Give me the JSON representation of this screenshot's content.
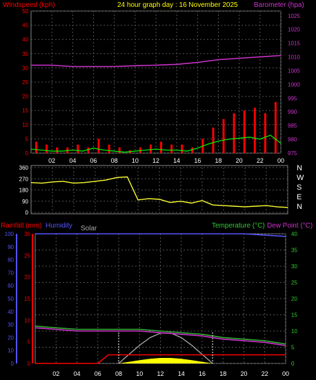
{
  "header": {
    "title": "24 hour graph day : 16 November 2025",
    "windspeed_label": "Windspeed (kph)",
    "barometer_label": "Barometer (hpa)"
  },
  "colors": {
    "background": "#000000",
    "grid": "#555555",
    "wind": "#ff0000",
    "wind_avg": "#00ff00",
    "barometer": "#cc33cc",
    "direction": "#ffff33",
    "rain": "#ff0000",
    "humidity": "#5555ff",
    "solar": "#aaaaaa",
    "temperature": "#33aa33",
    "dewpoint": "#cc33cc",
    "solar_fill": "#ffff00",
    "axis_white": "#ffffff",
    "title": "#ffff00"
  },
  "chart_data": [
    {
      "type": "line",
      "name": "wind-barometer",
      "x_ticks": [
        "02",
        "04",
        "06",
        "08",
        "10",
        "12",
        "14",
        "16",
        "18",
        "20",
        "22",
        "00"
      ],
      "y_left_ticks": [
        0,
        5,
        10,
        15,
        20,
        25,
        30,
        35,
        40,
        45,
        50
      ],
      "y_left_lim": [
        0,
        50
      ],
      "y_right_ticks": [
        975,
        980,
        985,
        990,
        995,
        1000,
        1005,
        1010,
        1015,
        1020,
        1025
      ],
      "y_right_lim": [
        975,
        1026.7
      ],
      "series": [
        {
          "name": "Windspeed (kph)",
          "color": "#ff0000",
          "axis": "left",
          "x": [
            0,
            1,
            2,
            3,
            4,
            5,
            6,
            7,
            8,
            9,
            10,
            11,
            12,
            13,
            14,
            15,
            16,
            17,
            18,
            19,
            20,
            21,
            22,
            23,
            24
          ],
          "values": [
            4,
            3,
            2,
            2,
            3,
            2,
            5,
            3,
            2,
            1,
            2,
            3,
            4,
            3,
            3,
            2,
            5,
            9,
            12,
            14,
            15,
            16,
            14,
            18,
            10
          ]
        },
        {
          "name": "Barometer (hpa)",
          "color": "#cc33cc",
          "axis": "right",
          "x": [
            0,
            2,
            4,
            6,
            8,
            10,
            12,
            14,
            16,
            18,
            20,
            22,
            24
          ],
          "values": [
            1007,
            1007,
            1006.5,
            1006.5,
            1006.5,
            1006.8,
            1007,
            1007.3,
            1008,
            1009,
            1009.5,
            1010,
            1010.5
          ]
        }
      ]
    },
    {
      "type": "scatter",
      "name": "wind-direction",
      "x_ticks": [
        "02",
        "04",
        "06",
        "08",
        "10",
        "12",
        "14",
        "16",
        "18",
        "20",
        "22",
        "00"
      ],
      "y_ticks": [
        0,
        45,
        90,
        135,
        180,
        225,
        270,
        315,
        360
      ],
      "y_lim": [
        0,
        360
      ],
      "compass_labels": [
        "N",
        "W",
        "S",
        "E",
        "N"
      ],
      "x": [
        0,
        1,
        2,
        3,
        4,
        5,
        6,
        7,
        8,
        9,
        10,
        11,
        12,
        13,
        14,
        15,
        16,
        17,
        18,
        19,
        20,
        21,
        22,
        23,
        24
      ],
      "values": [
        240,
        235,
        245,
        250,
        235,
        240,
        250,
        260,
        280,
        285,
        100,
        110,
        105,
        80,
        90,
        75,
        95,
        60,
        55,
        50,
        45,
        50,
        55,
        45,
        40
      ]
    },
    {
      "type": "line",
      "name": "rain-humidity-temperature",
      "x_ticks": [
        "02",
        "04",
        "06",
        "08",
        "10",
        "12",
        "14",
        "16",
        "18",
        "20",
        "22",
        "00"
      ],
      "y_humidity_ticks": [
        0,
        10,
        20,
        30,
        40,
        50,
        60,
        70,
        80,
        90,
        100
      ],
      "y_rain_ticks": [
        0,
        5,
        10,
        15,
        20,
        25,
        30
      ],
      "y_rain_lim": [
        0,
        30
      ],
      "y_temp_ticks": [
        0,
        5,
        10,
        15,
        20,
        25,
        30,
        35,
        40
      ],
      "y_temp_lim": [
        0,
        40
      ],
      "labels": {
        "rain": "Rainfall (mm)",
        "humidity": "Humidity",
        "solar": "Solar",
        "temperature": "Temperature (°C)",
        "dewpoint": "Dew Point (°C)"
      },
      "series": [
        {
          "name": "Temperature (°C)",
          "color": "#33aa33",
          "x": [
            0,
            2,
            4,
            6,
            8,
            10,
            12,
            14,
            16,
            18,
            20,
            22,
            24
          ],
          "values": [
            11.5,
            11,
            10.5,
            10.5,
            10.5,
            10.5,
            10,
            9.5,
            9,
            8,
            7.5,
            7,
            6
          ]
        },
        {
          "name": "Dew Point (°C)",
          "color": "#cc33cc",
          "x": [
            0,
            2,
            4,
            6,
            8,
            10,
            12,
            14,
            16,
            18,
            20,
            22,
            24
          ],
          "values": [
            11,
            10.5,
            10,
            10,
            10,
            10,
            9.5,
            9,
            8.5,
            7.5,
            7,
            6.5,
            5.5
          ]
        },
        {
          "name": "Humidity",
          "color": "#5555ff",
          "x": [
            0,
            2,
            4,
            6,
            8,
            10,
            12,
            14,
            16,
            18,
            20,
            22,
            24
          ],
          "values": [
            100,
            100,
            100,
            100,
            100,
            100,
            100,
            100,
            100,
            100,
            100,
            99,
            98
          ]
        },
        {
          "name": "Rainfall (mm)",
          "color": "#ff0000",
          "x": [
            0,
            6,
            6.5,
            7,
            24
          ],
          "values": [
            0,
            0,
            1,
            2,
            2
          ]
        },
        {
          "name": "Solar",
          "color": "#aaaaaa",
          "x": [
            8,
            9,
            10,
            11,
            12,
            13,
            14,
            15,
            16,
            17
          ],
          "values": [
            0,
            30,
            60,
            85,
            100,
            100,
            85,
            60,
            30,
            0
          ]
        }
      ]
    }
  ]
}
